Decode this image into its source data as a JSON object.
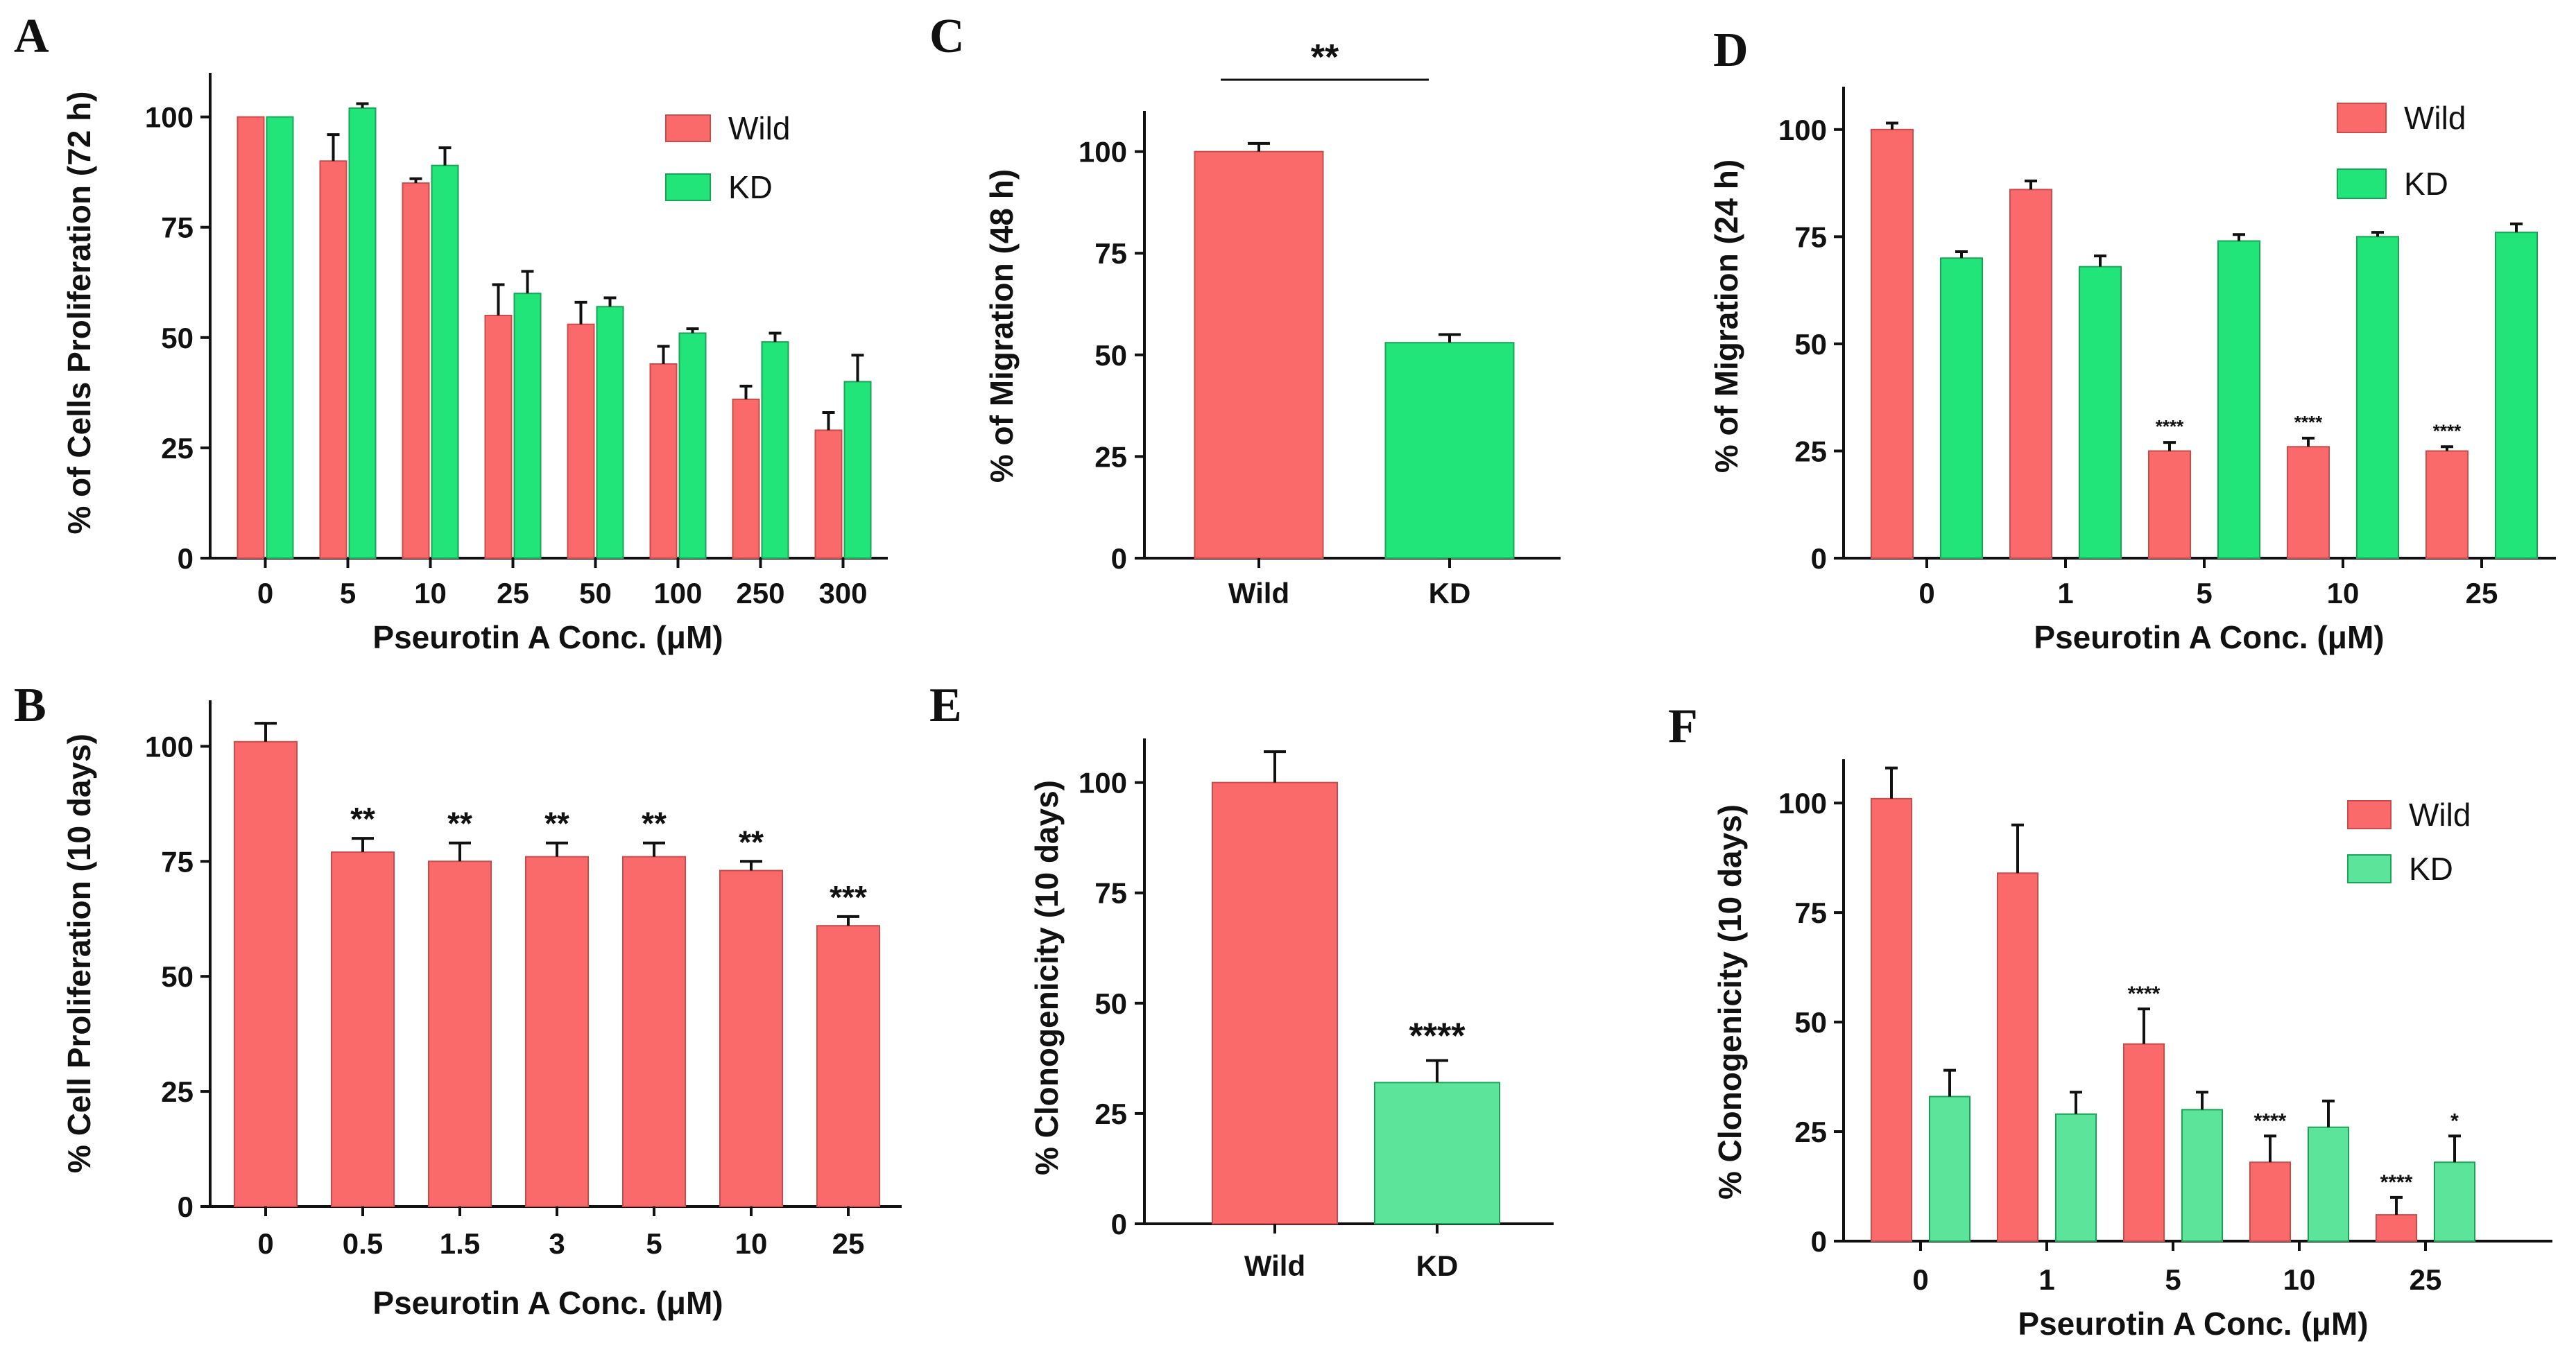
{
  "colors": {
    "wild": "#fb6a6a",
    "wild_stroke": "#c94b4b",
    "kd": "#22e57a",
    "kd_stroke": "#1aa458",
    "kd_light": "#5ce59a",
    "axis": "#111111"
  },
  "chart_data": [
    {
      "panel": "A",
      "type": "bar",
      "title": "",
      "xlabel": "Pseurotin A Conc. (μM)",
      "ylabel": "% of Cells Proliferation (72 h)",
      "ylim": [
        0,
        110
      ],
      "yticks": [
        0,
        25,
        50,
        75,
        100
      ],
      "categories": [
        "0",
        "5",
        "10",
        "25",
        "50",
        "100",
        "250",
        "300"
      ],
      "legend": "top-right",
      "series": [
        {
          "name": "Wild",
          "color_key": "wild",
          "values": [
            100,
            90,
            85,
            55,
            53,
            44,
            36,
            29
          ],
          "errors": [
            0,
            6,
            1,
            7,
            5,
            4,
            3,
            4
          ]
        },
        {
          "name": "KD",
          "color_key": "kd",
          "values": [
            100,
            102,
            89,
            60,
            57,
            51,
            49,
            40
          ],
          "errors": [
            0,
            1,
            4,
            5,
            2,
            1,
            2,
            6
          ]
        }
      ],
      "significance": []
    },
    {
      "panel": "B",
      "type": "bar",
      "title": "",
      "xlabel": "Pseurotin A Conc. (μM)",
      "ylabel": "% Cell Proliferation (10 days)",
      "ylim": [
        0,
        110
      ],
      "yticks": [
        0,
        25,
        50,
        75,
        100
      ],
      "categories": [
        "0",
        "0.5",
        "1.5",
        "3",
        "5",
        "10",
        "25"
      ],
      "legend": "none",
      "series": [
        {
          "name": "Wild",
          "color_key": "wild",
          "values": [
            101,
            77,
            75,
            76,
            76,
            73,
            61
          ],
          "errors": [
            4,
            3,
            4,
            3,
            3,
            2,
            2
          ]
        }
      ],
      "significance": [
        "",
        "**",
        "**",
        "**",
        "**",
        "**",
        "***"
      ]
    },
    {
      "panel": "C",
      "type": "bar",
      "title": "",
      "xlabel": "",
      "ylabel": "% of Migration (48 h)",
      "ylim": [
        0,
        110
      ],
      "yticks": [
        0,
        25,
        50,
        75,
        100
      ],
      "categories": [
        "Wild",
        "KD"
      ],
      "legend": "none",
      "series": [
        {
          "name": "Migration",
          "color_keys": [
            "wild",
            "kd"
          ],
          "values": [
            100,
            53
          ],
          "errors": [
            2,
            2
          ]
        }
      ],
      "bracket": {
        "label": "**",
        "from": "Wild",
        "to": "KD"
      },
      "significance": []
    },
    {
      "panel": "D",
      "type": "bar",
      "title": "",
      "xlabel": "Pseurotin A Conc. (μM)",
      "ylabel": "% of Migration (24 h)",
      "ylim": [
        0,
        110
      ],
      "yticks": [
        0,
        25,
        50,
        75,
        100
      ],
      "categories": [
        "0",
        "1",
        "5",
        "10",
        "25"
      ],
      "legend": "top-right",
      "series": [
        {
          "name": "Wild",
          "color_key": "wild",
          "values": [
            100,
            86,
            25,
            26,
            25
          ],
          "errors": [
            1.5,
            2,
            2,
            2,
            1
          ]
        },
        {
          "name": "KD",
          "color_key": "kd",
          "values": [
            70,
            68,
            74,
            75,
            76
          ],
          "errors": [
            1.5,
            2.5,
            1.5,
            1,
            2
          ]
        }
      ],
      "significance": [
        "",
        "",
        "****",
        "****",
        "****"
      ]
    },
    {
      "panel": "E",
      "type": "bar",
      "title": "",
      "xlabel": "",
      "ylabel": "% Clonogenicity (10 days)",
      "ylim": [
        0,
        110
      ],
      "yticks": [
        0,
        25,
        50,
        75,
        100
      ],
      "categories": [
        "Wild",
        "KD"
      ],
      "legend": "none",
      "series": [
        {
          "name": "Clonogenicity",
          "color_keys": [
            "wild",
            "kd_light"
          ],
          "values": [
            100,
            32
          ],
          "errors": [
            7,
            5
          ]
        }
      ],
      "significance": [
        "",
        "****"
      ]
    },
    {
      "panel": "F",
      "type": "bar",
      "title": "",
      "xlabel": "Pseurotin A Conc. (μM)",
      "ylabel": "% Clonogenicity (10 days)",
      "ylim": [
        0,
        110
      ],
      "yticks": [
        0,
        25,
        50,
        75,
        100
      ],
      "categories": [
        "0",
        "1",
        "5",
        "10",
        "25"
      ],
      "legend": "top-right",
      "series": [
        {
          "name": "Wild",
          "color_key": "wild",
          "values": [
            101,
            84,
            45,
            18,
            6
          ],
          "errors": [
            7,
            11,
            8,
            6,
            4
          ],
          "significance": [
            "",
            "",
            "****",
            "****",
            "****"
          ]
        },
        {
          "name": "KD",
          "color_key": "kd_light",
          "values": [
            33,
            29,
            30,
            26,
            18
          ],
          "errors": [
            6,
            5,
            4,
            6,
            6
          ],
          "significance": [
            "",
            "",
            "",
            "",
            "*"
          ]
        }
      ],
      "significance": []
    }
  ]
}
